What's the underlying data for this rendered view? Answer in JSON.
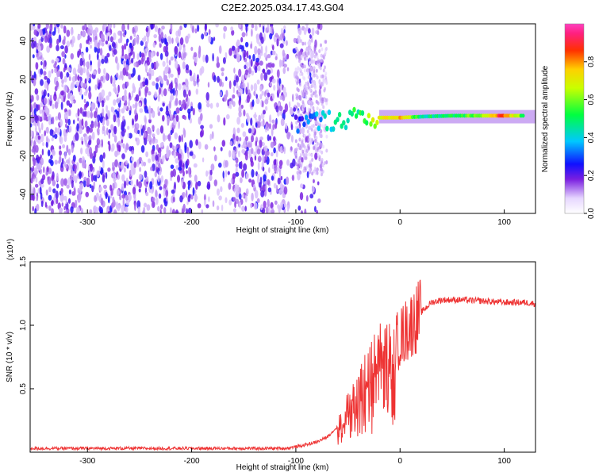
{
  "title": "C2E2.2025.034.17.43.G04",
  "chart_data": [
    {
      "type": "heatmap",
      "xlabel": "Height of straight line (km)",
      "ylabel": "Frequency (Hz)",
      "xlim": [
        -355,
        130
      ],
      "ylim": [
        -50,
        49
      ],
      "xticks": [
        -300,
        -200,
        -100,
        0,
        100
      ],
      "yticks": [
        -40,
        -20,
        0,
        20,
        40
      ],
      "colorbar": {
        "label": "Normalized spectral amplitude",
        "range": [
          0,
          1
        ],
        "ticks": [
          0.0,
          0.2,
          0.4,
          0.6,
          0.8
        ],
        "tick_labels": [
          "0.0",
          "0.2",
          "0.4",
          "0.6",
          "0.8"
        ]
      },
      "signal_trace": [
        {
          "x": -100,
          "y": -3,
          "amp": 0.25
        },
        {
          "x": -80,
          "y": -2,
          "amp": 0.35
        },
        {
          "x": -60,
          "y": -1,
          "amp": 0.45
        },
        {
          "x": -40,
          "y": 0,
          "amp": 0.5
        },
        {
          "x": -20,
          "y": 0,
          "amp": 0.7
        },
        {
          "x": 0,
          "y": 0,
          "amp": 0.75
        },
        {
          "x": 20,
          "y": 0.5,
          "amp": 0.45
        },
        {
          "x": 50,
          "y": 1,
          "amp": 0.5
        },
        {
          "x": 80,
          "y": 1,
          "amp": 0.6
        },
        {
          "x": 95,
          "y": 1,
          "amp": 0.9
        },
        {
          "x": 120,
          "y": 1,
          "amp": 0.5
        }
      ]
    },
    {
      "type": "line",
      "xlabel": "Height of straight line (km)",
      "ylabel": "SNR (10 * v/v)",
      "multiplier": "(x10⁴)",
      "xlim": [
        -355,
        130
      ],
      "ylim": [
        0,
        1.5
      ],
      "xticks": [
        -300,
        -200,
        -100,
        0,
        100
      ],
      "yticks": [
        0.5,
        1.0,
        1.5
      ],
      "ytick_labels": [
        "0.5",
        "1.0",
        "1.5"
      ],
      "color": "#ee3333",
      "x": [
        -355,
        -300,
        -250,
        -200,
        -150,
        -110,
        -95,
        -80,
        -70,
        -60,
        -50,
        -40,
        -30,
        -20,
        -15,
        -10,
        0,
        10,
        20,
        30,
        40,
        60,
        80,
        100,
        120,
        130
      ],
      "y": [
        0.03,
        0.03,
        0.03,
        0.03,
        0.03,
        0.03,
        0.05,
        0.08,
        0.12,
        0.2,
        0.35,
        0.5,
        0.65,
        0.8,
        0.85,
        0.8,
        0.9,
        1.0,
        1.1,
        1.18,
        1.2,
        1.2,
        1.19,
        1.18,
        1.18,
        1.17
      ]
    }
  ]
}
